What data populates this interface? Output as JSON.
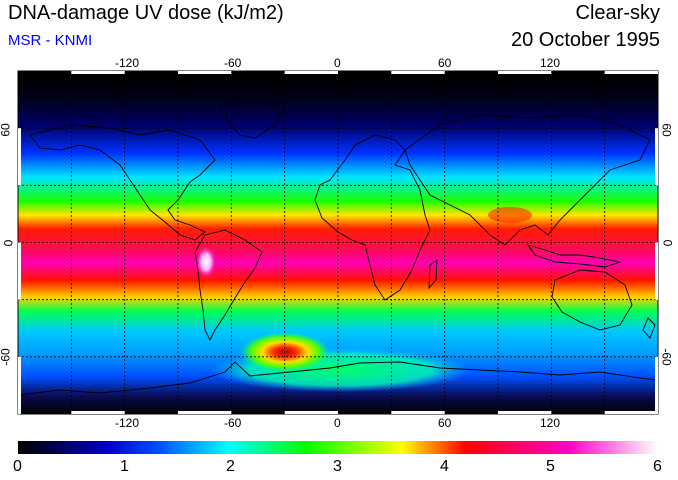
{
  "header": {
    "title": "DNA-damage UV dose (kJ/m2)",
    "source": "MSR - KNMI",
    "condition": "Clear-sky",
    "date": "20 October 1995"
  },
  "colors": {
    "source_text": "#0000ff",
    "background": "#ffffff",
    "coastline": "#000000"
  },
  "map": {
    "longitude_ticks": [
      "-120",
      "-60",
      "0",
      "60",
      "120"
    ],
    "longitude_values": [
      -120,
      -60,
      0,
      60,
      120
    ],
    "latitude_ticks": [
      "60",
      "0",
      "-60"
    ],
    "latitude_values": [
      60,
      0,
      -60
    ],
    "lon_range": [
      -180,
      180
    ],
    "lat_range": [
      -90,
      90
    ],
    "gridlines": "dashed every 30 degrees"
  },
  "colorbar": {
    "labels": [
      "0",
      "1",
      "2",
      "3",
      "4",
      "5",
      "6"
    ],
    "min": 0,
    "max": 6,
    "stops": [
      "#000000",
      "#0000ff",
      "#00ffff",
      "#00ff00",
      "#ffff00",
      "#ff0000",
      "#ff00ff",
      "#ffffff"
    ]
  }
}
